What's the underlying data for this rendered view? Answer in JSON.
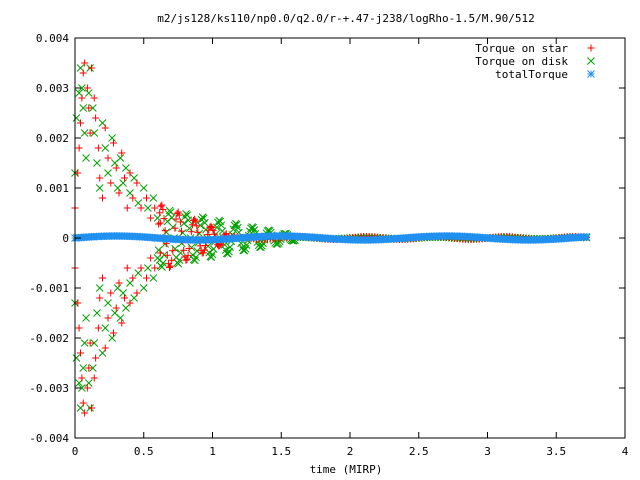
{
  "chart_data": {
    "type": "scatter",
    "title": "m2/js128/ks110/np0.0/q2.0/r-+.47-j238/logRho-1.5/M.90/512",
    "xlabel": "time (MIRP)",
    "ylabel": "",
    "xlim": [
      0,
      4
    ],
    "ylim": [
      -0.004,
      0.004
    ],
    "xticks": [
      "0",
      "0.5",
      "1",
      "1.5",
      "2",
      "2.5",
      "3",
      "3.5",
      "4"
    ],
    "yticks": [
      "-0.004",
      "-0.003",
      "-0.002",
      "-0.001",
      "0",
      "0.001",
      "0.002",
      "0.003",
      "0.004"
    ],
    "grid": false,
    "legend_position": "top-right",
    "series": [
      {
        "name": "Torque on star",
        "color": "#ff0000",
        "marker": "plus",
        "points": [
          [
            0.0,
            -0.0006
          ],
          [
            0.0,
            0.0006
          ],
          [
            0.02,
            -0.0013
          ],
          [
            0.02,
            0.0013
          ],
          [
            0.03,
            -0.0018
          ],
          [
            0.03,
            0.0018
          ],
          [
            0.04,
            -0.0023
          ],
          [
            0.04,
            0.0023
          ],
          [
            0.05,
            -0.0028
          ],
          [
            0.05,
            0.0028
          ],
          [
            0.06,
            -0.0033
          ],
          [
            0.06,
            0.0033
          ],
          [
            0.07,
            -0.0035
          ],
          [
            0.07,
            0.0035
          ],
          [
            0.09,
            -0.003
          ],
          [
            0.09,
            0.003
          ],
          [
            0.1,
            -0.0026
          ],
          [
            0.1,
            0.0026
          ],
          [
            0.11,
            -0.0021
          ],
          [
            0.11,
            0.0021
          ],
          [
            0.12,
            -0.0034
          ],
          [
            0.12,
            0.0034
          ],
          [
            0.14,
            -0.0028
          ],
          [
            0.14,
            0.0028
          ],
          [
            0.15,
            -0.0024
          ],
          [
            0.15,
            0.0024
          ],
          [
            0.17,
            -0.0018
          ],
          [
            0.17,
            0.0018
          ],
          [
            0.18,
            -0.0012
          ],
          [
            0.18,
            0.0012
          ],
          [
            0.2,
            -0.0008
          ],
          [
            0.2,
            0.0008
          ],
          [
            0.22,
            -0.0022
          ],
          [
            0.22,
            0.0022
          ],
          [
            0.24,
            -0.0016
          ],
          [
            0.24,
            0.0016
          ],
          [
            0.26,
            -0.0011
          ],
          [
            0.26,
            0.0011
          ],
          [
            0.28,
            -0.0019
          ],
          [
            0.28,
            0.0019
          ],
          [
            0.3,
            -0.0014
          ],
          [
            0.3,
            0.0014
          ],
          [
            0.32,
            -0.0009
          ],
          [
            0.32,
            0.0009
          ],
          [
            0.34,
            -0.0017
          ],
          [
            0.34,
            0.0017
          ],
          [
            0.36,
            -0.0012
          ],
          [
            0.36,
            0.0012
          ],
          [
            0.38,
            -0.0006
          ],
          [
            0.38,
            0.0006
          ],
          [
            0.4,
            -0.0013
          ],
          [
            0.4,
            0.0013
          ],
          [
            0.42,
            -0.0008
          ],
          [
            0.42,
            0.0008
          ],
          [
            0.45,
            -0.0011
          ],
          [
            0.45,
            0.0011
          ],
          [
            0.48,
            -0.0006
          ],
          [
            0.48,
            0.0006
          ],
          [
            0.52,
            -0.0008
          ],
          [
            0.52,
            0.0008
          ],
          [
            0.55,
            -0.0004
          ],
          [
            0.55,
            0.0004
          ],
          [
            0.58,
            -0.0006
          ],
          [
            0.58,
            0.0006
          ],
          [
            0.62,
            -0.0003
          ],
          [
            0.62,
            0.0003
          ]
        ],
        "wave": {
          "x_start": 0.6,
          "x_end": 1.1,
          "amplitude_start": 0.0007,
          "amplitude_end": 0.0001,
          "period": 0.12
        }
      },
      {
        "name": "Torque on disk",
        "color": "#00a000",
        "marker": "cross",
        "points": [
          [
            0.0,
            0.0013
          ],
          [
            0.0,
            -0.0013
          ],
          [
            0.01,
            0.0024
          ],
          [
            0.01,
            -0.0024
          ],
          [
            0.03,
            0.0029
          ],
          [
            0.03,
            -0.0029
          ],
          [
            0.04,
            0.0034
          ],
          [
            0.04,
            -0.0034
          ],
          [
            0.05,
            0.003
          ],
          [
            0.05,
            -0.003
          ],
          [
            0.06,
            0.0026
          ],
          [
            0.06,
            -0.0026
          ],
          [
            0.07,
            0.0021
          ],
          [
            0.07,
            -0.0021
          ],
          [
            0.08,
            0.0016
          ],
          [
            0.08,
            -0.0016
          ],
          [
            0.1,
            0.0029
          ],
          [
            0.1,
            -0.0029
          ],
          [
            0.11,
            0.0034
          ],
          [
            0.11,
            -0.0034
          ],
          [
            0.13,
            0.0026
          ],
          [
            0.13,
            -0.0026
          ],
          [
            0.14,
            0.0021
          ],
          [
            0.14,
            -0.0021
          ],
          [
            0.16,
            0.0015
          ],
          [
            0.16,
            -0.0015
          ],
          [
            0.18,
            0.001
          ],
          [
            0.18,
            -0.001
          ],
          [
            0.2,
            0.0023
          ],
          [
            0.2,
            -0.0023
          ],
          [
            0.22,
            0.0018
          ],
          [
            0.22,
            -0.0018
          ],
          [
            0.24,
            0.0013
          ],
          [
            0.24,
            -0.0013
          ],
          [
            0.27,
            0.002
          ],
          [
            0.27,
            -0.002
          ],
          [
            0.29,
            0.0015
          ],
          [
            0.29,
            -0.0015
          ],
          [
            0.31,
            0.001
          ],
          [
            0.31,
            -0.001
          ],
          [
            0.33,
            0.0016
          ],
          [
            0.33,
            -0.0016
          ],
          [
            0.35,
            0.0011
          ],
          [
            0.35,
            -0.0011
          ],
          [
            0.37,
            0.0014
          ],
          [
            0.37,
            -0.0014
          ],
          [
            0.4,
            0.0009
          ],
          [
            0.4,
            -0.0009
          ],
          [
            0.43,
            0.0012
          ],
          [
            0.43,
            -0.0012
          ],
          [
            0.46,
            0.0007
          ],
          [
            0.46,
            -0.0007
          ],
          [
            0.5,
            0.001
          ],
          [
            0.5,
            -0.001
          ],
          [
            0.53,
            0.0006
          ],
          [
            0.53,
            -0.0006
          ],
          [
            0.57,
            0.0008
          ],
          [
            0.57,
            -0.0008
          ],
          [
            0.6,
            0.0004
          ],
          [
            0.6,
            -0.0004
          ]
        ],
        "wave": {
          "x_start": 0.6,
          "x_end": 1.6,
          "amplitude_start": 0.0006,
          "amplitude_end": 5e-05,
          "period": 0.12,
          "phase": 0.5
        }
      },
      {
        "name": "totalTorque",
        "color": "#2090f0",
        "marker": "star",
        "curve": {
          "x_start": 0.0,
          "x_end": 3.73,
          "y": 0.0
        }
      }
    ]
  }
}
